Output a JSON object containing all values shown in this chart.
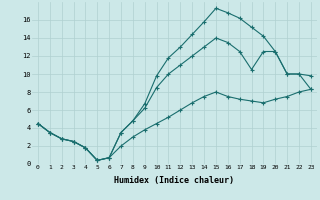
{
  "xlabel": "Humidex (Indice chaleur)",
  "bg_color": "#cce8e8",
  "grid_color": "#b0d0d0",
  "line_color": "#1a6e6e",
  "line1_y": [
    4.5,
    3.5,
    2.8,
    2.5,
    1.8,
    0.4,
    0.7,
    3.5,
    4.8,
    6.7,
    9.8,
    11.8,
    13.0,
    14.4,
    15.8,
    17.3,
    16.8,
    16.2,
    15.2,
    14.2,
    12.5,
    10.0,
    10.0,
    9.8
  ],
  "line2_y": [
    4.5,
    3.5,
    2.8,
    2.5,
    1.8,
    0.4,
    0.7,
    3.5,
    4.8,
    6.2,
    8.5,
    10.0,
    11.0,
    12.0,
    13.0,
    14.0,
    13.5,
    12.5,
    10.5,
    12.5,
    12.5,
    10.0,
    10.0,
    8.3
  ],
  "line3_y": [
    4.5,
    3.5,
    2.8,
    2.5,
    1.8,
    0.4,
    0.7,
    2.0,
    3.0,
    3.8,
    4.5,
    5.2,
    6.0,
    6.8,
    7.5,
    8.0,
    7.5,
    7.2,
    7.0,
    6.8,
    7.2,
    7.5,
    8.0,
    8.3
  ],
  "x": [
    0,
    1,
    2,
    3,
    4,
    5,
    6,
    7,
    8,
    9,
    10,
    11,
    12,
    13,
    14,
    15,
    16,
    17,
    18,
    19,
    20,
    21,
    22,
    23
  ],
  "ylim": [
    0,
    18
  ],
  "xlim": [
    -0.5,
    23.5
  ],
  "yticks": [
    0,
    2,
    4,
    6,
    8,
    10,
    12,
    14,
    16
  ],
  "xticks": [
    0,
    1,
    2,
    3,
    4,
    5,
    6,
    7,
    8,
    9,
    10,
    11,
    12,
    13,
    14,
    15,
    16,
    17,
    18,
    19,
    20,
    21,
    22,
    23
  ]
}
